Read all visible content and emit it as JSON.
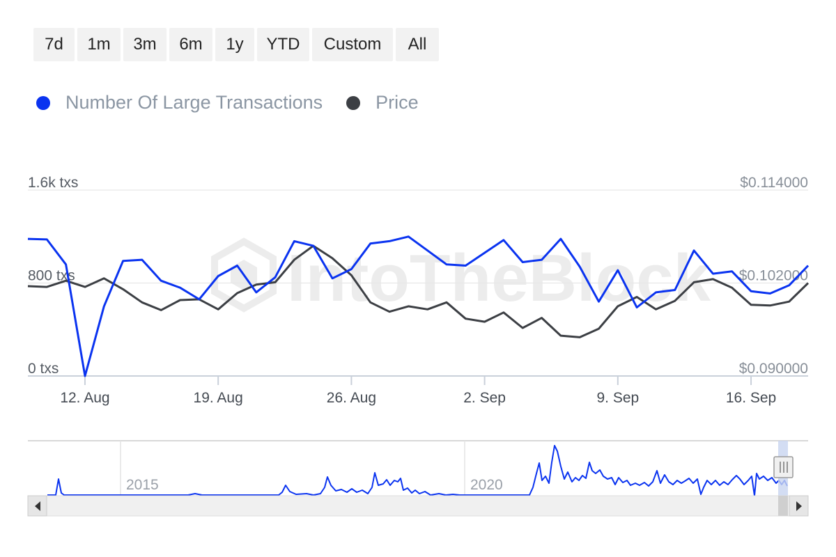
{
  "range_selector": {
    "buttons": [
      "7d",
      "1m",
      "3m",
      "6m",
      "1y",
      "YTD",
      "Custom",
      "All"
    ]
  },
  "colors": {
    "transactions": "#0a33f0",
    "price": "#3c3f44",
    "axis_text": "#888f98",
    "left_axis_text": "#555b63",
    "grid": "#e6e6e6"
  },
  "watermark": "IntoTheBlock",
  "chart_data": {
    "type": "line",
    "title": "",
    "legend_position": "top-left",
    "legend": [
      "Number Of Large Transactions",
      "Price"
    ],
    "x_tick_labels": [
      "12. Aug",
      "19. Aug",
      "26. Aug",
      "2. Sep",
      "9. Sep",
      "16. Sep"
    ],
    "x_tick_days": [
      3,
      10,
      17,
      24,
      31,
      38
    ],
    "left_axis": {
      "labels": [
        "0 txs",
        "800 txs",
        "1.6k txs"
      ],
      "min": 0,
      "max": 1600
    },
    "right_axis": {
      "labels": [
        "$0.090000",
        "$0.102000",
        "$0.114000"
      ],
      "min": 0.09,
      "max": 0.114
    },
    "x_range_days": [
      0,
      41
    ],
    "series": [
      {
        "name": "Number Of Large Transactions",
        "axis": "left",
        "days": [
          0,
          1,
          2,
          3,
          4,
          5,
          6,
          7,
          8,
          9,
          10,
          11,
          12,
          13,
          14,
          15,
          16,
          17,
          18,
          19,
          20,
          21,
          22,
          23,
          24,
          25,
          26,
          27,
          28,
          29,
          30,
          31,
          32,
          33,
          34,
          35,
          36,
          37,
          38,
          39,
          40,
          41
        ],
        "values": [
          1180,
          1175,
          960,
          0,
          600,
          990,
          1000,
          820,
          760,
          660,
          860,
          950,
          720,
          850,
          1160,
          1120,
          840,
          920,
          1140,
          1160,
          1200,
          1080,
          960,
          950,
          1060,
          1170,
          980,
          1000,
          1180,
          940,
          640,
          910,
          590,
          720,
          740,
          1080,
          880,
          900,
          730,
          710,
          780,
          950
        ]
      },
      {
        "name": "Price",
        "axis": "right",
        "days": [
          0,
          1,
          2,
          3,
          4,
          5,
          6,
          7,
          8,
          9,
          10,
          11,
          12,
          13,
          14,
          15,
          16,
          17,
          18,
          19,
          20,
          21,
          22,
          23,
          24,
          25,
          26,
          27,
          28,
          29,
          30,
          31,
          32,
          33,
          34,
          35,
          36,
          37,
          38,
          39,
          40,
          41
        ],
        "values": [
          0.1016,
          0.1015,
          0.1023,
          0.1015,
          0.1026,
          0.1012,
          0.0995,
          0.0985,
          0.0998,
          0.0999,
          0.0986,
          0.1007,
          0.1018,
          0.1021,
          0.105,
          0.1068,
          0.1052,
          0.103,
          0.0995,
          0.0983,
          0.099,
          0.0986,
          0.0995,
          0.0974,
          0.097,
          0.0982,
          0.0962,
          0.0975,
          0.0952,
          0.095,
          0.0961,
          0.099,
          0.1002,
          0.0986,
          0.0997,
          0.1021,
          0.1025,
          0.1014,
          0.0992,
          0.0991,
          0.0996,
          0.102
        ]
      }
    ]
  },
  "navigator": {
    "year_labels": [
      "2015",
      "2020"
    ]
  }
}
